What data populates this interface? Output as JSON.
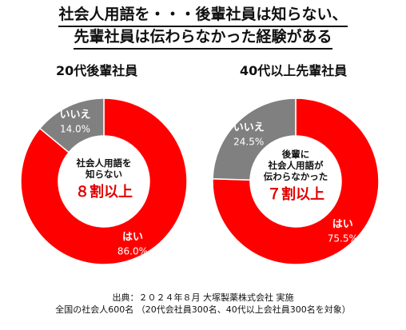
{
  "title": {
    "line1": "社会人用語を・・・後輩社員は知らない、",
    "line2": "先輩社員は伝わらなかった経験がある"
  },
  "chart_data": [
    {
      "type": "pie",
      "subtitle": "20代後輩社員",
      "slices": [
        {
          "label": "はい",
          "value": 86.0,
          "display": "86.0%",
          "color": "#ff0000"
        },
        {
          "label": "いいえ",
          "value": 14.0,
          "display": "14.0%",
          "color": "#808080"
        }
      ],
      "center_text": [
        "社会人用語を",
        "知らない"
      ],
      "center_highlight": "８割以上",
      "donut": true,
      "start": "12 o'clock, clockwise"
    },
    {
      "type": "pie",
      "subtitle": "40代以上先輩社員",
      "slices": [
        {
          "label": "はい",
          "value": 75.5,
          "display": "75.5%",
          "color": "#ff0000"
        },
        {
          "label": "いいえ",
          "value": 24.5,
          "display": "24.5%",
          "color": "#808080"
        }
      ],
      "center_text": [
        "後輩に",
        "社会人用語が",
        "伝わらなかった"
      ],
      "center_highlight": "７割以上",
      "donut": true,
      "start": "12 o'clock, clockwise"
    }
  ],
  "footer": {
    "line1": "出典：２０２４年８月 大塚製薬株式会社 実施",
    "line2": "全国の社会人600名 （20代会社員300名、40代以上会社員300名を対象）"
  },
  "colors": {
    "highlight": "#e00000",
    "slice_label_text": "#ffffff"
  }
}
